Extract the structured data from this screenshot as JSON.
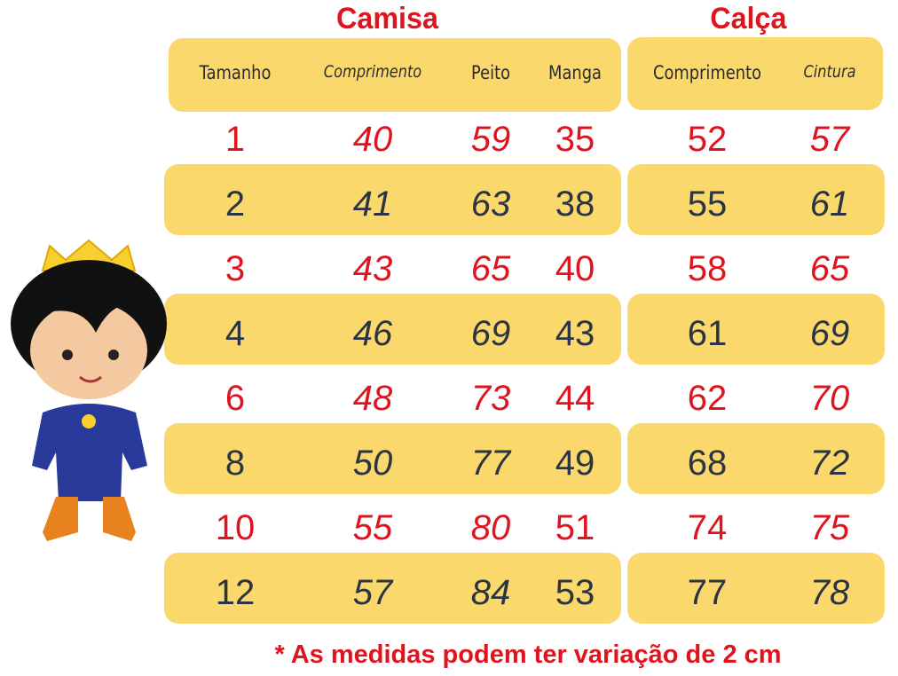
{
  "titles": {
    "shirt": "Camisa",
    "pants": "Calça"
  },
  "headers": [
    "Tamanho",
    "Comprimento",
    "Peito",
    "Manga",
    "Comprimento",
    "Cintura"
  ],
  "rows": [
    [
      "1",
      "40",
      "59",
      "35",
      "52",
      "57"
    ],
    [
      "2",
      "41",
      "63",
      "38",
      "55",
      "61"
    ],
    [
      "3",
      "43",
      "65",
      "40",
      "58",
      "65"
    ],
    [
      "4",
      "46",
      "69",
      "43",
      "61",
      "69"
    ],
    [
      "6",
      "48",
      "73",
      "44",
      "62",
      "70"
    ],
    [
      "8",
      "50",
      "77",
      "49",
      "68",
      "72"
    ],
    [
      "10",
      "55",
      "80",
      "51",
      "74",
      "75"
    ],
    [
      "12",
      "57",
      "84",
      "53",
      "77",
      "78"
    ]
  ],
  "note": "* As medidas podem ter variação de 2 cm",
  "colors": {
    "band": "#fbd86b",
    "red": "#e0141e",
    "dark": "#2b3442"
  },
  "illustration": "prince-boy-icon"
}
